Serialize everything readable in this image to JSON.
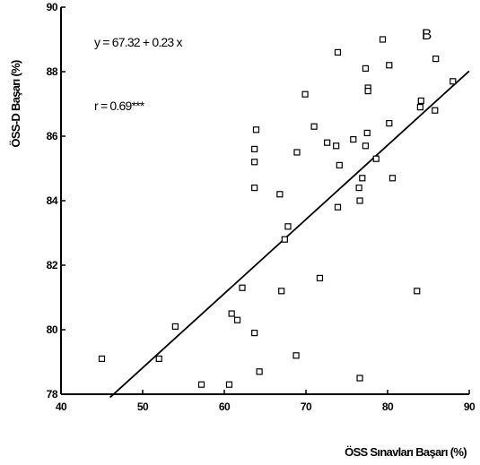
{
  "chart_data": {
    "type": "scatter",
    "title": "",
    "xlabel": "ÖSS Sınavları Başarı (%)",
    "ylabel": "ÖSS-D Başarı (%)",
    "xlim": [
      40,
      90
    ],
    "ylim": [
      78,
      90
    ],
    "x_ticks": [
      40,
      50,
      60,
      70,
      80,
      90
    ],
    "y_ticks": [
      78,
      80,
      82,
      84,
      86,
      88,
      90
    ],
    "x_tick_labels": [
      "40",
      "50",
      "60",
      "70",
      "80",
      "90"
    ],
    "y_tick_labels": [
      "78",
      "80",
      "82",
      "84",
      "86",
      "88",
      "90"
    ],
    "grid": false,
    "panel_label": "B",
    "annotations": {
      "equation": "y = 67.32 + 0.23 x",
      "correlation": "r = 0.69***"
    },
    "regression": {
      "intercept": 67.32,
      "slope": 0.23,
      "x_range": [
        46,
        90
      ]
    },
    "points": [
      {
        "x": 45.0,
        "y": 79.1
      },
      {
        "x": 52.0,
        "y": 79.1
      },
      {
        "x": 54.0,
        "y": 80.1
      },
      {
        "x": 57.2,
        "y": 78.3
      },
      {
        "x": 60.6,
        "y": 78.3
      },
      {
        "x": 60.9,
        "y": 80.5
      },
      {
        "x": 61.6,
        "y": 80.3
      },
      {
        "x": 62.2,
        "y": 81.3
      },
      {
        "x": 63.7,
        "y": 79.9
      },
      {
        "x": 64.3,
        "y": 78.7
      },
      {
        "x": 63.7,
        "y": 84.4
      },
      {
        "x": 63.7,
        "y": 85.2
      },
      {
        "x": 63.7,
        "y": 85.6
      },
      {
        "x": 63.9,
        "y": 86.2
      },
      {
        "x": 66.8,
        "y": 84.2
      },
      {
        "x": 67.0,
        "y": 81.2
      },
      {
        "x": 67.4,
        "y": 82.8
      },
      {
        "x": 67.8,
        "y": 83.2
      },
      {
        "x": 68.8,
        "y": 79.2
      },
      {
        "x": 68.9,
        "y": 85.5
      },
      {
        "x": 69.9,
        "y": 87.3
      },
      {
        "x": 71.0,
        "y": 86.3
      },
      {
        "x": 71.7,
        "y": 81.6
      },
      {
        "x": 72.6,
        "y": 85.8
      },
      {
        "x": 73.7,
        "y": 85.7
      },
      {
        "x": 74.1,
        "y": 85.1
      },
      {
        "x": 73.9,
        "y": 83.8
      },
      {
        "x": 73.9,
        "y": 88.6
      },
      {
        "x": 75.8,
        "y": 85.9
      },
      {
        "x": 76.5,
        "y": 84.4
      },
      {
        "x": 76.6,
        "y": 84.0
      },
      {
        "x": 76.6,
        "y": 78.5
      },
      {
        "x": 76.9,
        "y": 84.7
      },
      {
        "x": 77.3,
        "y": 85.7
      },
      {
        "x": 77.5,
        "y": 86.1
      },
      {
        "x": 77.3,
        "y": 88.1
      },
      {
        "x": 77.6,
        "y": 87.5
      },
      {
        "x": 77.6,
        "y": 87.4
      },
      {
        "x": 78.6,
        "y": 85.3
      },
      {
        "x": 79.4,
        "y": 89.0
      },
      {
        "x": 80.2,
        "y": 88.2
      },
      {
        "x": 80.2,
        "y": 86.4
      },
      {
        "x": 80.6,
        "y": 84.7
      },
      {
        "x": 83.6,
        "y": 81.2
      },
      {
        "x": 84.0,
        "y": 86.9
      },
      {
        "x": 84.1,
        "y": 87.1
      },
      {
        "x": 85.8,
        "y": 86.8
      },
      {
        "x": 85.9,
        "y": 88.4
      },
      {
        "x": 88.0,
        "y": 87.7
      }
    ]
  }
}
